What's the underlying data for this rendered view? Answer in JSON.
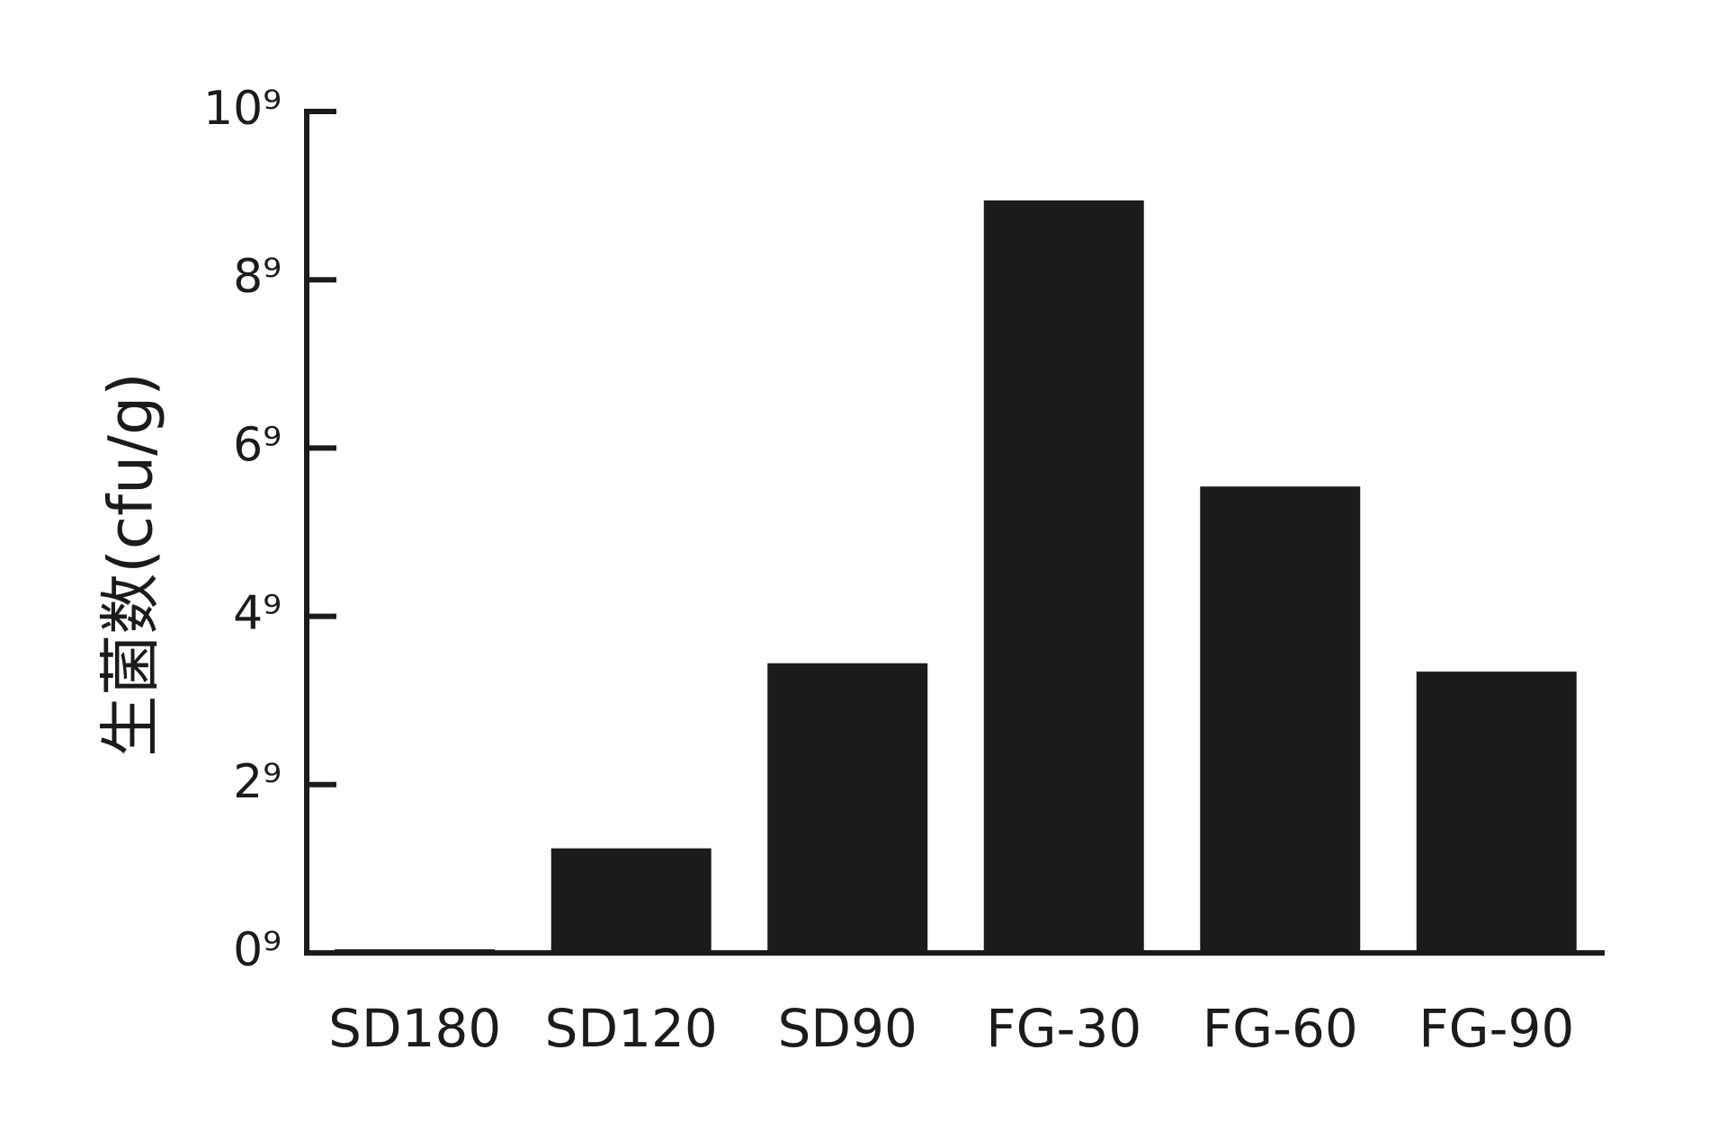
{
  "chart_data": {
    "type": "bar",
    "y_label": "生菌数(cfu/g)",
    "categories": [
      "SD180",
      "SD120",
      "SD90",
      "FG-30",
      "FG-60",
      "FG-90"
    ],
    "values": [
      0,
      1.2,
      3.4,
      8.9,
      5.5,
      3.3
    ],
    "color": "#1c1a1b",
    "ylim": [
      0,
      10
    ],
    "yticks": [
      {
        "value": 0,
        "label": "0⁹"
      },
      {
        "value": 2,
        "label": "2⁹"
      },
      {
        "value": 4,
        "label": "4⁹"
      },
      {
        "value": 6,
        "label": "6⁹"
      },
      {
        "value": 8,
        "label": "8⁹"
      },
      {
        "value": 10,
        "label": "10⁹"
      }
    ],
    "grid": false
  }
}
